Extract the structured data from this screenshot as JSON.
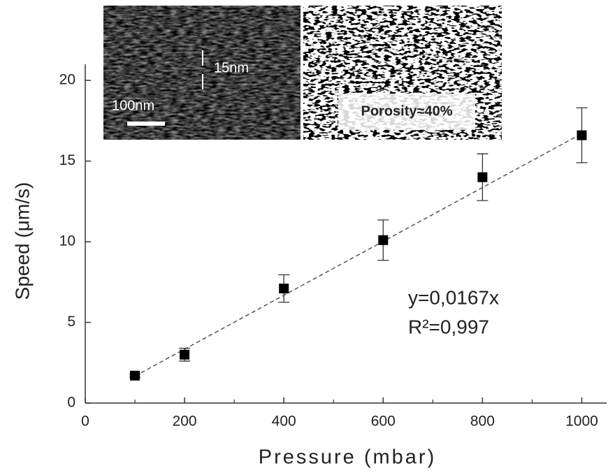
{
  "chart_data": {
    "type": "scatter",
    "x_label": "Pressure (mbar)",
    "y_label": "Speed (μm/s)",
    "series": [
      {
        "color": "#000000",
        "x": [
          100,
          200,
          400,
          600,
          800,
          1000
        ],
        "values": [
          1.7,
          3.0,
          7.1,
          10.1,
          14.0,
          16.6
        ],
        "errors": [
          0.1,
          0.4,
          0.85,
          1.25,
          1.45,
          1.7
        ]
      }
    ],
    "fit_line": {
      "slope": 0.0167,
      "x": [
        100,
        1000
      ],
      "color": "#555555"
    },
    "annotations": [
      "y=0,0167x",
      "R²=0,997"
    ],
    "insets": {
      "left_labels": [
        "15nm",
        "100nm"
      ],
      "right_label": "Porosity≈40%"
    },
    "xlim": [
      0,
      1050
    ],
    "ylim": [
      0,
      21
    ],
    "xticks": [
      0,
      200,
      400,
      600,
      800,
      1000
    ],
    "xminor_ticks": [
      100,
      300,
      500,
      700,
      900
    ],
    "yticks": [
      0,
      5,
      10,
      15,
      20
    ],
    "grid": false
  }
}
